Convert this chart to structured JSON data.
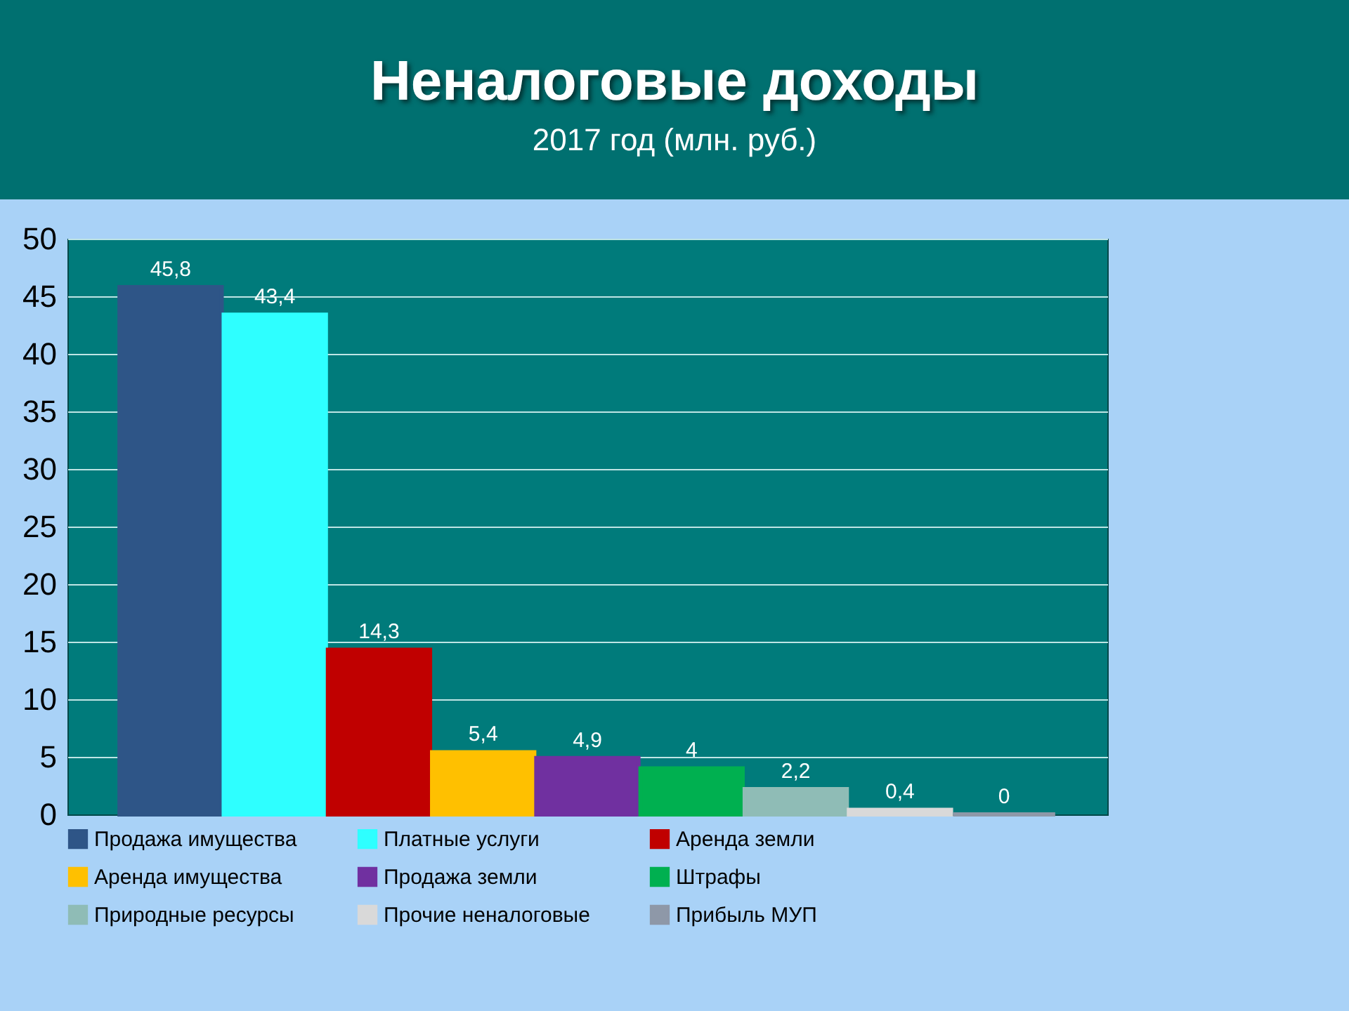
{
  "chart_data": {
    "type": "bar",
    "title": "Неналоговые доходы",
    "subtitle": "2017 год (млн. руб.)",
    "categories": [
      null
    ],
    "series": [
      {
        "name": "Продажа имущества",
        "color": "#2e5587",
        "values": [
          45.8
        ],
        "value_labels": [
          "45,8"
        ]
      },
      {
        "name": "Платные услуги",
        "color": "#2effff",
        "values": [
          43.4
        ],
        "value_labels": [
          "43,4"
        ]
      },
      {
        "name": "Аренда земли",
        "color": "#c00000",
        "values": [
          14.3
        ],
        "value_labels": [
          "14,3"
        ]
      },
      {
        "name": "Аренда имущества",
        "color": "#ffc000",
        "values": [
          5.4
        ],
        "value_labels": [
          "5,4"
        ]
      },
      {
        "name": "Продажа земли",
        "color": "#7030a0",
        "values": [
          4.9
        ],
        "value_labels": [
          "4,9"
        ]
      },
      {
        "name": "Штрафы",
        "color": "#00b050",
        "values": [
          4
        ],
        "value_labels": [
          "4"
        ]
      },
      {
        "name": "Природные ресурсы",
        "color": "#8fbcb6",
        "values": [
          2.2
        ],
        "value_labels": [
          "2,2"
        ]
      },
      {
        "name": "Прочие неналоговые",
        "color": "#d9d9d9",
        "values": [
          0.4
        ],
        "value_labels": [
          "0,4"
        ]
      },
      {
        "name": "Прибыль МУП",
        "color": "#8e98a8",
        "values": [
          0
        ],
        "value_labels": [
          "0"
        ]
      }
    ],
    "ylim": [
      0,
      50
    ],
    "yticks": [
      0,
      5,
      10,
      15,
      20,
      25,
      30,
      35,
      40,
      45,
      50
    ],
    "grid": "y",
    "legend": "bottom",
    "tick_labels": "y"
  }
}
